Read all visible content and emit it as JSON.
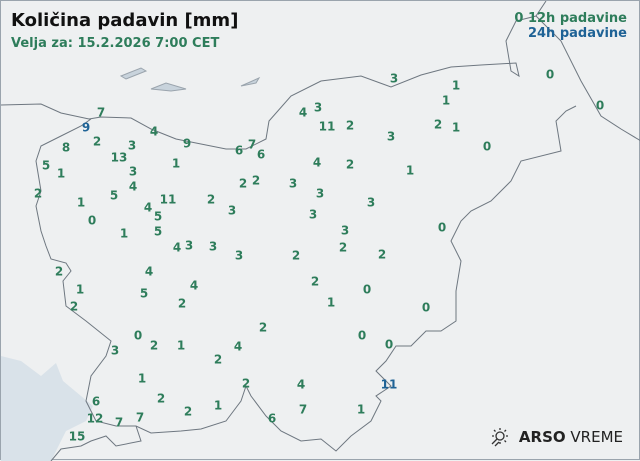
{
  "title": "Količina padavin [mm]",
  "valid": "Velja za: 15.2.2026 7:00 CET",
  "legend": {
    "marker": "0",
    "h12": "12h padavine",
    "h24": "24h padavine"
  },
  "colors": {
    "h12": "#2e7d5b",
    "h24": "#1f6396",
    "sea": "#d9e2e9",
    "border": "#6e7780"
  },
  "brand": {
    "icon": "sun-rain-icon",
    "bold": "ARSO",
    "normal": "VREME"
  },
  "stations": [
    {
      "v": "7",
      "t": "12h"
    },
    {
      "v": "9",
      "t": "24h"
    },
    {
      "v": "4",
      "t": "12h"
    },
    {
      "v": "9",
      "t": "12h"
    },
    {
      "v": "6",
      "t": "12h"
    },
    {
      "v": "7",
      "t": "12h"
    },
    {
      "v": "6",
      "t": "12h"
    },
    {
      "v": "2",
      "t": "12h"
    },
    {
      "v": "8",
      "t": "12h"
    },
    {
      "v": "3",
      "t": "12h"
    },
    {
      "v": "5",
      "t": "12h"
    },
    {
      "v": "1",
      "t": "12h"
    },
    {
      "v": "13",
      "t": "12h"
    },
    {
      "v": "3",
      "t": "12h"
    },
    {
      "v": "4",
      "t": "12h"
    },
    {
      "v": "1",
      "t": "12h"
    },
    {
      "v": "2",
      "t": "12h"
    },
    {
      "v": "1",
      "t": "12h"
    },
    {
      "v": "5",
      "t": "12h"
    },
    {
      "v": "0",
      "t": "12h"
    },
    {
      "v": "4",
      "t": "12h"
    },
    {
      "v": "5",
      "t": "12h"
    },
    {
      "v": "5",
      "t": "12h"
    },
    {
      "v": "11",
      "t": "12h"
    },
    {
      "v": "2",
      "t": "12h"
    },
    {
      "v": "3",
      "t": "12h"
    },
    {
      "v": "2",
      "t": "12h"
    },
    {
      "v": "2",
      "t": "12h"
    },
    {
      "v": "3",
      "t": "12h"
    },
    {
      "v": "1",
      "t": "12h"
    },
    {
      "v": "4",
      "t": "12h"
    },
    {
      "v": "3",
      "t": "12h"
    },
    {
      "v": "3",
      "t": "12h"
    },
    {
      "v": "3",
      "t": "12h"
    },
    {
      "v": "2",
      "t": "12h"
    },
    {
      "v": "2",
      "t": "12h"
    },
    {
      "v": "2",
      "t": "12h"
    },
    {
      "v": "1",
      "t": "12h"
    },
    {
      "v": "2",
      "t": "12h"
    },
    {
      "v": "4",
      "t": "12h"
    },
    {
      "v": "5",
      "t": "12h"
    },
    {
      "v": "4",
      "t": "12h"
    },
    {
      "v": "2",
      "t": "12h"
    },
    {
      "v": "2",
      "t": "12h"
    },
    {
      "v": "0",
      "t": "12h"
    },
    {
      "v": "2",
      "t": "12h"
    },
    {
      "v": "1",
      "t": "12h"
    },
    {
      "v": "3",
      "t": "12h"
    },
    {
      "v": "4",
      "t": "12h"
    },
    {
      "v": "2",
      "t": "12h"
    },
    {
      "v": "1",
      "t": "12h"
    },
    {
      "v": "2",
      "t": "12h"
    },
    {
      "v": "1",
      "t": "12h"
    },
    {
      "v": "2",
      "t": "12h"
    },
    {
      "v": "2",
      "t": "12h"
    },
    {
      "v": "4",
      "t": "12h"
    },
    {
      "v": "7",
      "t": "12h"
    },
    {
      "v": "6",
      "t": "12h"
    },
    {
      "v": "7",
      "t": "12h"
    },
    {
      "v": "7",
      "t": "12h"
    },
    {
      "v": "6",
      "t": "12h"
    },
    {
      "v": "12",
      "t": "12h"
    },
    {
      "v": "15",
      "t": "12h"
    },
    {
      "v": "3",
      "t": "12h"
    },
    {
      "v": "1",
      "t": "12h"
    },
    {
      "v": "1",
      "t": "12h"
    },
    {
      "v": "4",
      "t": "12h"
    },
    {
      "v": "3",
      "t": "12h"
    },
    {
      "v": "11",
      "t": "12h"
    },
    {
      "v": "2",
      "t": "12h"
    },
    {
      "v": "2",
      "t": "12h"
    },
    {
      "v": "1",
      "t": "12h"
    },
    {
      "v": "3",
      "t": "12h"
    },
    {
      "v": "0",
      "t": "12h"
    },
    {
      "v": "4",
      "t": "12h"
    },
    {
      "v": "2",
      "t": "12h"
    },
    {
      "v": "1",
      "t": "12h"
    },
    {
      "v": "3",
      "t": "12h"
    },
    {
      "v": "3",
      "t": "12h"
    },
    {
      "v": "3",
      "t": "12h"
    },
    {
      "v": "3",
      "t": "12h"
    },
    {
      "v": "2",
      "t": "12h"
    },
    {
      "v": "2",
      "t": "12h"
    },
    {
      "v": "1",
      "t": "12h"
    },
    {
      "v": "0",
      "t": "12h"
    },
    {
      "v": "0",
      "t": "12h"
    },
    {
      "v": "0",
      "t": "12h"
    },
    {
      "v": "0",
      "t": "12h"
    },
    {
      "v": "0",
      "t": "12h"
    },
    {
      "v": "11",
      "t": "24h"
    },
    {
      "v": "1",
      "t": "12h"
    },
    {
      "v": "0",
      "t": "12h"
    },
    {
      "v": "0",
      "t": "12h"
    }
  ]
}
